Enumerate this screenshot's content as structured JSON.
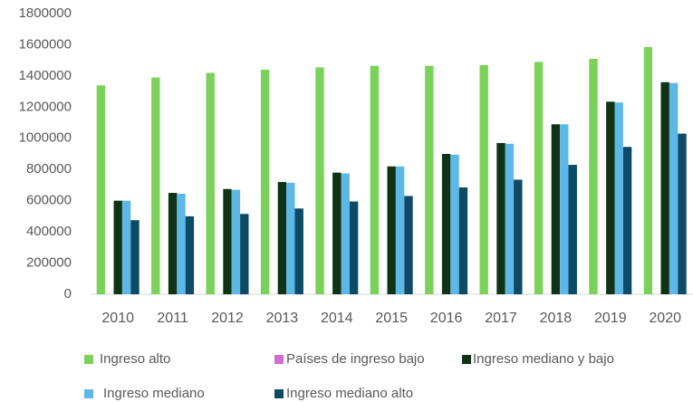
{
  "chart_data": {
    "type": "bar",
    "categories": [
      "2010",
      "2011",
      "2012",
      "2013",
      "2014",
      "2015",
      "2016",
      "2017",
      "2018",
      "2019",
      "2020"
    ],
    "series": [
      {
        "name": "Ingreso alto",
        "color": "#7ad25a",
        "values": [
          1340000,
          1390000,
          1420000,
          1440000,
          1455000,
          1465000,
          1465000,
          1470000,
          1490000,
          1510000,
          1585000
        ]
      },
      {
        "name": "Países de ingreso bajo",
        "color": "#d36bd1",
        "values": [
          0,
          0,
          0,
          0,
          0,
          0,
          0,
          0,
          0,
          0,
          0
        ]
      },
      {
        "name": "Ingreso mediano y bajo",
        "color": "#0f3314",
        "values": [
          600000,
          650000,
          675000,
          720000,
          780000,
          820000,
          900000,
          970000,
          1090000,
          1235000,
          1360000
        ]
      },
      {
        "name": "Ingreso mediano",
        "color": "#5db8e8",
        "values": [
          600000,
          645000,
          670000,
          715000,
          775000,
          820000,
          895000,
          965000,
          1090000,
          1230000,
          1355000
        ]
      },
      {
        "name": "Ingreso mediano alto",
        "color": "#0d4a66",
        "values": [
          475000,
          500000,
          515000,
          550000,
          595000,
          630000,
          685000,
          735000,
          830000,
          945000,
          1030000
        ]
      }
    ],
    "ylim": [
      0,
      1800000
    ],
    "yticks": [
      0,
      200000,
      400000,
      600000,
      800000,
      1000000,
      1200000,
      1400000,
      1600000,
      1800000
    ],
    "grid": false,
    "legend": "bottom"
  }
}
